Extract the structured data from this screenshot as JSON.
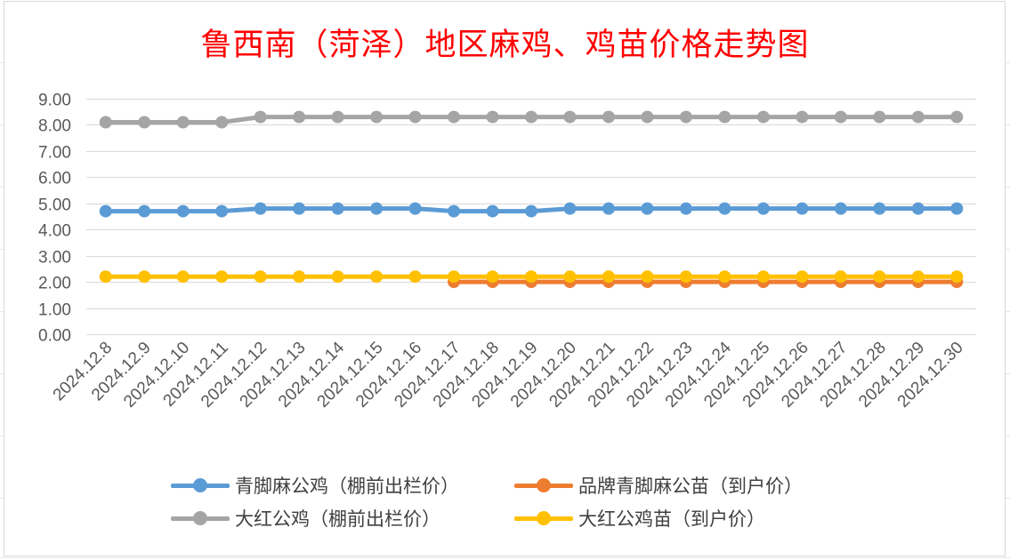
{
  "chart_data": {
    "type": "line",
    "title": "鲁西南（菏泽）地区麻鸡、鸡苗价格走势图",
    "xlabel": "",
    "ylabel": "",
    "ylim": [
      0,
      9
    ],
    "ytick_labels": [
      "0.00",
      "1.00",
      "2.00",
      "3.00",
      "4.00",
      "5.00",
      "6.00",
      "7.00",
      "8.00",
      "9.00"
    ],
    "grid": true,
    "legend_position": "bottom",
    "categories": [
      "2024.12.8",
      "2024.12.9",
      "2024.12.10",
      "2024.12.11",
      "2024.12.12",
      "2024.12.13",
      "2024.12.14",
      "2024.12.15",
      "2024.12.16",
      "2024.12.17",
      "2024.12.18",
      "2024.12.19",
      "2024.12.20",
      "2024.12.21",
      "2024.12.22",
      "2024.12.23",
      "2024.12.24",
      "2024.12.25",
      "2024.12.26",
      "2024.12.27",
      "2024.12.28",
      "2024.12.29",
      "2024.12.30"
    ],
    "series": [
      {
        "name": "青脚麻公鸡（棚前出栏价）",
        "color": "#5b9bd5",
        "values": [
          4.7,
          4.7,
          4.7,
          4.7,
          4.8,
          4.8,
          4.8,
          4.8,
          4.8,
          4.7,
          4.7,
          4.7,
          4.8,
          4.8,
          4.8,
          4.8,
          4.8,
          4.8,
          4.8,
          4.8,
          4.8,
          4.8,
          4.8
        ]
      },
      {
        "name": "品牌青脚麻公苗（到户价）",
        "color": "#ed7d31",
        "values": [
          null,
          null,
          null,
          null,
          null,
          null,
          null,
          null,
          null,
          2.0,
          2.0,
          2.0,
          2.0,
          2.0,
          2.0,
          2.0,
          2.0,
          2.0,
          2.0,
          2.0,
          2.0,
          2.0,
          2.0
        ]
      },
      {
        "name": "大红公鸡（棚前出栏价）",
        "color": "#a5a5a5",
        "values": [
          8.1,
          8.1,
          8.1,
          8.1,
          8.3,
          8.3,
          8.3,
          8.3,
          8.3,
          8.3,
          8.3,
          8.3,
          8.3,
          8.3,
          8.3,
          8.3,
          8.3,
          8.3,
          8.3,
          8.3,
          8.3,
          8.3,
          8.3
        ]
      },
      {
        "name": "大红公鸡苗（到户价）",
        "color": "#ffc000",
        "values": [
          2.2,
          2.2,
          2.2,
          2.2,
          2.2,
          2.2,
          2.2,
          2.2,
          2.2,
          2.2,
          2.2,
          2.2,
          2.2,
          2.2,
          2.2,
          2.2,
          2.2,
          2.2,
          2.2,
          2.2,
          2.2,
          2.2,
          2.2
        ]
      }
    ],
    "draw_order": [
      2,
      0,
      1,
      3
    ],
    "legend_order": [
      0,
      1,
      2,
      3
    ]
  }
}
